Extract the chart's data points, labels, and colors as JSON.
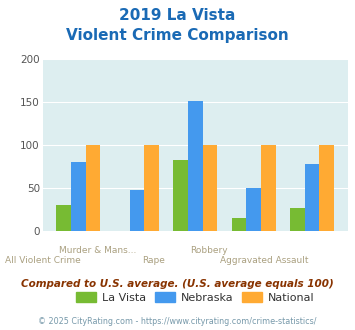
{
  "title_line1": "2019 La Vista",
  "title_line2": "Violent Crime Comparison",
  "categories": [
    "All Violent Crime",
    "Murder & Mans...",
    "Rape",
    "Robbery",
    "Aggravated Assault"
  ],
  "cat_labels_row1": [
    "",
    "Murder & Mans...",
    "",
    "Robbery",
    ""
  ],
  "cat_labels_row2": [
    "All Violent Crime",
    "",
    "Rape",
    "",
    "Aggravated Assault"
  ],
  "la_vista": [
    30,
    0,
    83,
    15,
    27
  ],
  "nebraska": [
    80,
    48,
    152,
    50,
    78
  ],
  "national": [
    100,
    100,
    100,
    100,
    100
  ],
  "color_lavista": "#77bb33",
  "color_nebraska": "#4499ee",
  "color_national": "#ffaa33",
  "ylim": [
    0,
    200
  ],
  "yticks": [
    0,
    50,
    100,
    150,
    200
  ],
  "background_color": "#ddeef0",
  "title_color": "#1a6ab5",
  "axis_label_color": "#aaa080",
  "legend_labels": [
    "La Vista",
    "Nebraska",
    "National"
  ],
  "note_text": "Compared to U.S. average. (U.S. average equals 100)",
  "footer_text": "© 2025 CityRating.com - https://www.cityrating.com/crime-statistics/",
  "note_color": "#883300",
  "footer_color": "#7799aa"
}
